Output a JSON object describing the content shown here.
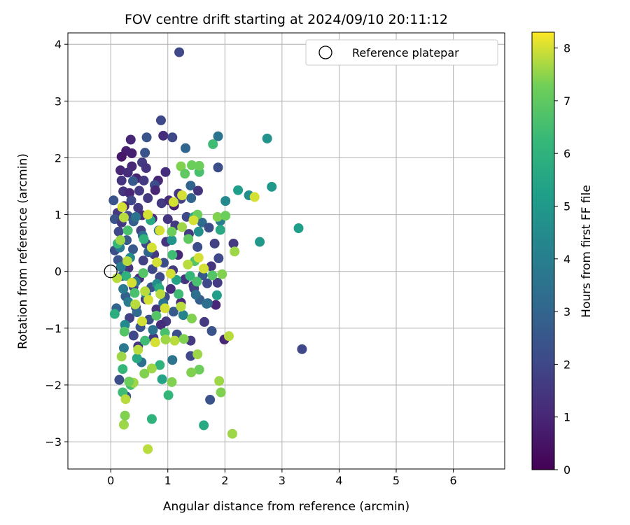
{
  "chart_data": {
    "type": "scatter",
    "title": "FOV centre drift starting at 2024/09/10 20:11:12",
    "xlabel": "Angular distance from reference (arcmin)",
    "ylabel": "Rotation from reference (arcmin)",
    "xlim": [
      -0.75,
      6.9
    ],
    "ylim": [
      -3.48,
      4.2
    ],
    "xticks": [
      0,
      1,
      2,
      3,
      4,
      5,
      6
    ],
    "yticks": [
      -3,
      -2,
      -1,
      0,
      1,
      2,
      3,
      4
    ],
    "grid": true,
    "legend": {
      "position": "top-right",
      "label": "Reference platepar"
    },
    "reference_point": {
      "x": 0,
      "y": 0
    },
    "colorbar": {
      "label": "Hours from first FF file",
      "range": [
        0,
        8.3
      ],
      "ticks": [
        0,
        1,
        2,
        3,
        4,
        5,
        6,
        7,
        8
      ],
      "colormap": "viridis"
    },
    "points": [
      {
        "x": 1.2,
        "y": 3.86,
        "c": 2.0
      },
      {
        "x": 0.88,
        "y": 2.66,
        "c": 2.0
      },
      {
        "x": 0.63,
        "y": 2.36,
        "c": 2.4
      },
      {
        "x": 0.92,
        "y": 2.39,
        "c": 1.2
      },
      {
        "x": 1.08,
        "y": 2.36,
        "c": 2.0
      },
      {
        "x": 0.35,
        "y": 2.32,
        "c": 1.0
      },
      {
        "x": 1.31,
        "y": 2.17,
        "c": 3.0
      },
      {
        "x": 0.6,
        "y": 2.09,
        "c": 2.4
      },
      {
        "x": 0.27,
        "y": 2.12,
        "c": 0.8
      },
      {
        "x": 0.37,
        "y": 2.08,
        "c": 0.8
      },
      {
        "x": 0.19,
        "y": 2.02,
        "c": 0.6
      },
      {
        "x": 0.55,
        "y": 1.92,
        "c": 1.6
      },
      {
        "x": 0.37,
        "y": 1.85,
        "c": 1.0
      },
      {
        "x": 0.17,
        "y": 1.78,
        "c": 1.0
      },
      {
        "x": 0.3,
        "y": 1.74,
        "c": 1.2
      },
      {
        "x": 0.62,
        "y": 1.82,
        "c": 1.4
      },
      {
        "x": 0.96,
        "y": 1.75,
        "c": 1.2
      },
      {
        "x": 0.45,
        "y": 1.64,
        "c": 0.9
      },
      {
        "x": 0.19,
        "y": 1.6,
        "c": 1.4
      },
      {
        "x": 0.39,
        "y": 1.59,
        "c": 2.6
      },
      {
        "x": 0.58,
        "y": 1.6,
        "c": 1.6
      },
      {
        "x": 0.83,
        "y": 1.6,
        "c": 1.0
      },
      {
        "x": 0.77,
        "y": 1.52,
        "c": 2.2
      },
      {
        "x": 0.22,
        "y": 1.41,
        "c": 1.4
      },
      {
        "x": 0.33,
        "y": 1.38,
        "c": 1.0
      },
      {
        "x": 0.5,
        "y": 1.42,
        "c": 1.6
      },
      {
        "x": 0.78,
        "y": 1.43,
        "c": 1.0
      },
      {
        "x": 0.65,
        "y": 1.29,
        "c": 1.6
      },
      {
        "x": 0.36,
        "y": 1.25,
        "c": 2.0
      },
      {
        "x": 0.05,
        "y": 1.25,
        "c": 2.4
      },
      {
        "x": 0.24,
        "y": 1.15,
        "c": 1.0
      },
      {
        "x": 0.48,
        "y": 1.12,
        "c": 1.6
      },
      {
        "x": 0.89,
        "y": 1.2,
        "c": 1.6
      },
      {
        "x": 1.02,
        "y": 1.25,
        "c": 1.2
      },
      {
        "x": 1.11,
        "y": 1.16,
        "c": 0.8
      },
      {
        "x": 0.12,
        "y": 1.03,
        "c": 1.6
      },
      {
        "x": 0.3,
        "y": 0.98,
        "c": 2.0
      },
      {
        "x": 0.55,
        "y": 0.99,
        "c": 1.2
      },
      {
        "x": 0.07,
        "y": 0.92,
        "c": 2.4
      },
      {
        "x": 0.19,
        "y": 0.86,
        "c": 1.6
      },
      {
        "x": 0.4,
        "y": 0.88,
        "c": 2.8
      },
      {
        "x": 0.73,
        "y": 0.93,
        "c": 1.0
      },
      {
        "x": 1.0,
        "y": 0.92,
        "c": 1.4
      },
      {
        "x": 0.14,
        "y": 0.7,
        "c": 2.0
      },
      {
        "x": 0.53,
        "y": 0.72,
        "c": 1.8
      },
      {
        "x": 0.84,
        "y": 0.72,
        "c": 3.6
      },
      {
        "x": 1.13,
        "y": 0.81,
        "c": 1.6
      },
      {
        "x": 0.28,
        "y": 0.55,
        "c": 2.6
      },
      {
        "x": 0.62,
        "y": 0.49,
        "c": 2.0
      },
      {
        "x": 0.97,
        "y": 0.52,
        "c": 1.4
      },
      {
        "x": 0.07,
        "y": 0.37,
        "c": 2.2
      },
      {
        "x": 0.39,
        "y": 0.39,
        "c": 2.6
      },
      {
        "x": 0.76,
        "y": 0.3,
        "c": 1.6
      },
      {
        "x": 1.18,
        "y": 0.29,
        "c": 1.0
      },
      {
        "x": 0.13,
        "y": 0.2,
        "c": 2.4
      },
      {
        "x": 0.57,
        "y": 0.19,
        "c": 1.8
      },
      {
        "x": 0.93,
        "y": 0.15,
        "c": 2.2
      },
      {
        "x": 0.31,
        "y": 0.06,
        "c": 1.4
      },
      {
        "x": 0.73,
        "y": 0.04,
        "c": 2.0
      },
      {
        "x": 1.09,
        "y": 0.02,
        "c": 1.6
      },
      {
        "x": 0.2,
        "y": -0.08,
        "c": 2.6
      },
      {
        "x": 0.5,
        "y": -0.12,
        "c": 1.2
      },
      {
        "x": 0.86,
        "y": -0.1,
        "c": 2.0
      },
      {
        "x": 1.3,
        "y": -0.14,
        "c": 1.4
      },
      {
        "x": 0.4,
        "y": -0.27,
        "c": 1.8
      },
      {
        "x": 0.71,
        "y": -0.28,
        "c": 2.4
      },
      {
        "x": 1.05,
        "y": -0.31,
        "c": 1.2
      },
      {
        "x": 1.45,
        "y": -0.25,
        "c": 1.6
      },
      {
        "x": 0.26,
        "y": -0.44,
        "c": 2.8
      },
      {
        "x": 0.61,
        "y": -0.49,
        "c": 1.6
      },
      {
        "x": 0.95,
        "y": -0.45,
        "c": 2.2
      },
      {
        "x": 1.23,
        "y": -0.55,
        "c": 1.0
      },
      {
        "x": 0.44,
        "y": -0.63,
        "c": 2.0
      },
      {
        "x": 0.8,
        "y": -0.67,
        "c": 1.4
      },
      {
        "x": 1.1,
        "y": -0.71,
        "c": 2.6
      },
      {
        "x": 0.1,
        "y": -0.65,
        "c": 3.0
      },
      {
        "x": 0.33,
        "y": -0.82,
        "c": 1.8
      },
      {
        "x": 0.67,
        "y": -0.85,
        "c": 2.2
      },
      {
        "x": 0.97,
        "y": -0.88,
        "c": 1.6
      },
      {
        "x": 0.52,
        "y": -0.98,
        "c": 2.4
      },
      {
        "x": 0.88,
        "y": -0.94,
        "c": 1.2
      },
      {
        "x": 0.4,
        "y": -1.13,
        "c": 2.0
      },
      {
        "x": 0.75,
        "y": -1.17,
        "c": 1.6
      },
      {
        "x": 1.16,
        "y": -1.11,
        "c": 2.2
      },
      {
        "x": 0.48,
        "y": -1.32,
        "c": 1.4
      },
      {
        "x": 1.4,
        "y": -1.49,
        "c": 2.0
      },
      {
        "x": 0.27,
        "y": -2.2,
        "c": 2.4
      },
      {
        "x": 0.15,
        "y": -1.91,
        "c": 2.2
      },
      {
        "x": 1.19,
        "y": 1.37,
        "c": 1.6
      },
      {
        "x": 1.23,
        "y": 1.28,
        "c": 1.8
      },
      {
        "x": 1.4,
        "y": 1.51,
        "c": 3.0
      },
      {
        "x": 1.53,
        "y": 1.42,
        "c": 1.4
      },
      {
        "x": 1.88,
        "y": 1.83,
        "c": 2.2
      },
      {
        "x": 1.88,
        "y": 2.38,
        "c": 3.6
      },
      {
        "x": 1.33,
        "y": 0.96,
        "c": 2.0
      },
      {
        "x": 1.6,
        "y": 0.86,
        "c": 3.2
      },
      {
        "x": 1.72,
        "y": 0.77,
        "c": 2.2
      },
      {
        "x": 1.37,
        "y": 0.66,
        "c": 1.6
      },
      {
        "x": 1.82,
        "y": 0.49,
        "c": 1.8
      },
      {
        "x": 2.15,
        "y": 0.49,
        "c": 1.6
      },
      {
        "x": 1.52,
        "y": 0.43,
        "c": 2.2
      },
      {
        "x": 1.89,
        "y": 0.23,
        "c": 2.0
      },
      {
        "x": 1.76,
        "y": 0.09,
        "c": 1.4
      },
      {
        "x": 1.61,
        "y": -0.07,
        "c": 2.6
      },
      {
        "x": 1.69,
        "y": -0.21,
        "c": 2.0
      },
      {
        "x": 1.87,
        "y": -0.2,
        "c": 1.6
      },
      {
        "x": 1.46,
        "y": -0.3,
        "c": 1.8
      },
      {
        "x": 1.56,
        "y": -0.5,
        "c": 2.8
      },
      {
        "x": 1.84,
        "y": -0.59,
        "c": 1.0
      },
      {
        "x": 1.7,
        "y": -0.56,
        "c": 3.0
      },
      {
        "x": 1.64,
        "y": -0.89,
        "c": 1.6
      },
      {
        "x": 1.77,
        "y": -1.05,
        "c": 2.4
      },
      {
        "x": 1.99,
        "y": -1.2,
        "c": 1.0
      },
      {
        "x": 1.4,
        "y": -1.22,
        "c": 1.6
      },
      {
        "x": 1.74,
        "y": -2.26,
        "c": 2.4
      },
      {
        "x": 3.35,
        "y": -1.37,
        "c": 2.0
      },
      {
        "x": 0.18,
        "y": 0.08,
        "c": 4.0
      },
      {
        "x": 0.34,
        "y": 0.24,
        "c": 4.4
      },
      {
        "x": 0.44,
        "y": -0.18,
        "c": 3.6
      },
      {
        "x": 0.62,
        "y": -0.4,
        "c": 4.2
      },
      {
        "x": 0.22,
        "y": -0.31,
        "c": 3.8
      },
      {
        "x": 0.81,
        "y": -0.22,
        "c": 4.6
      },
      {
        "x": 0.56,
        "y": 0.63,
        "c": 3.4
      },
      {
        "x": 0.31,
        "y": -0.54,
        "c": 4.0
      },
      {
        "x": 0.46,
        "y": -0.72,
        "c": 3.2
      },
      {
        "x": 0.25,
        "y": -0.94,
        "c": 4.4
      },
      {
        "x": 0.66,
        "y": 0.34,
        "c": 3.0
      },
      {
        "x": 0.92,
        "y": -0.56,
        "c": 3.6
      },
      {
        "x": 1.27,
        "y": -0.77,
        "c": 4.2
      },
      {
        "x": 1.49,
        "y": -0.41,
        "c": 3.4
      },
      {
        "x": 1.68,
        "y": -0.57,
        "c": 3.4
      },
      {
        "x": 1.92,
        "y": 0.89,
        "c": 4.0
      },
      {
        "x": 2.01,
        "y": 1.24,
        "c": 4.4
      },
      {
        "x": 1.41,
        "y": 1.29,
        "c": 3.0
      },
      {
        "x": 1.07,
        "y": 0.55,
        "c": 4.8
      },
      {
        "x": 0.16,
        "y": 0.42,
        "c": 3.8
      },
      {
        "x": 0.74,
        "y": -1.03,
        "c": 3.6
      },
      {
        "x": 1.08,
        "y": -1.56,
        "c": 3.6
      },
      {
        "x": 0.54,
        "y": -1.6,
        "c": 3.4
      },
      {
        "x": 0.23,
        "y": -1.35,
        "c": 3.8
      },
      {
        "x": 0.44,
        "y": 0.96,
        "c": 3.6
      },
      {
        "x": 1.54,
        "y": 0.7,
        "c": 4.6
      },
      {
        "x": 2.42,
        "y": 1.34,
        "c": 4.6
      },
      {
        "x": 2.74,
        "y": 2.34,
        "c": 4.8
      },
      {
        "x": 2.82,
        "y": 1.49,
        "c": 5.0
      },
      {
        "x": 2.23,
        "y": 1.43,
        "c": 5.2
      },
      {
        "x": 2.61,
        "y": 0.52,
        "c": 5.0
      },
      {
        "x": 3.29,
        "y": 0.76,
        "c": 5.2
      },
      {
        "x": 1.92,
        "y": 0.73,
        "c": 5.6
      },
      {
        "x": 1.86,
        "y": -0.42,
        "c": 5.2
      },
      {
        "x": 1.46,
        "y": 0.96,
        "c": 5.8
      },
      {
        "x": 1.63,
        "y": -2.71,
        "c": 5.6
      },
      {
        "x": 1.15,
        "y": -0.15,
        "c": 5.4
      },
      {
        "x": 0.85,
        "y": -0.3,
        "c": 5.8
      },
      {
        "x": 0.7,
        "y": 0.9,
        "c": 5.6
      },
      {
        "x": 0.27,
        "y": -0.08,
        "c": 6.0
      },
      {
        "x": 0.07,
        "y": -0.75,
        "c": 5.8
      },
      {
        "x": 0.21,
        "y": -1.72,
        "c": 6.2
      },
      {
        "x": 0.46,
        "y": -1.53,
        "c": 5.6
      },
      {
        "x": 0.86,
        "y": -1.65,
        "c": 6.0
      },
      {
        "x": 0.9,
        "y": -1.9,
        "c": 5.4
      },
      {
        "x": 1.01,
        "y": -2.18,
        "c": 6.2
      },
      {
        "x": 0.72,
        "y": -2.6,
        "c": 6.0
      },
      {
        "x": 0.21,
        "y": -2.13,
        "c": 6.4
      },
      {
        "x": 0.35,
        "y": -2.0,
        "c": 6.6
      },
      {
        "x": 1.79,
        "y": 2.24,
        "c": 6.4
      },
      {
        "x": 1.55,
        "y": 1.75,
        "c": 6.6
      },
      {
        "x": 1.39,
        "y": -0.08,
        "c": 6.2
      },
      {
        "x": 1.08,
        "y": 0.29,
        "c": 6.4
      },
      {
        "x": 0.58,
        "y": 0.57,
        "c": 6.0
      },
      {
        "x": 0.3,
        "y": 0.72,
        "c": 6.6
      },
      {
        "x": 0.12,
        "y": 0.49,
        "c": 6.2
      },
      {
        "x": 0.57,
        "y": -0.03,
        "c": 6.8
      },
      {
        "x": 0.8,
        "y": -0.78,
        "c": 6.8
      },
      {
        "x": 0.6,
        "y": -1.22,
        "c": 6.4
      },
      {
        "x": 0.24,
        "y": -1.06,
        "c": 6.8
      },
      {
        "x": 0.42,
        "y": -0.38,
        "c": 6.6
      },
      {
        "x": 1.19,
        "y": -0.4,
        "c": 6.4
      },
      {
        "x": 0.95,
        "y": -1.08,
        "c": 6.6
      },
      {
        "x": 1.47,
        "y": 0.18,
        "c": 6.8
      },
      {
        "x": 1.51,
        "y": -0.18,
        "c": 6.6
      },
      {
        "x": 1.78,
        "y": -0.07,
        "c": 6.8
      },
      {
        "x": 1.42,
        "y": 1.87,
        "c": 7.2
      },
      {
        "x": 1.23,
        "y": 1.85,
        "c": 7.4
      },
      {
        "x": 1.55,
        "y": 1.86,
        "c": 7.2
      },
      {
        "x": 1.3,
        "y": 1.72,
        "c": 7.0
      },
      {
        "x": 1.87,
        "y": 0.96,
        "c": 7.4
      },
      {
        "x": 2.01,
        "y": 0.98,
        "c": 7.2
      },
      {
        "x": 1.36,
        "y": 0.57,
        "c": 7.0
      },
      {
        "x": 1.52,
        "y": 1.0,
        "c": 7.2
      },
      {
        "x": 1.25,
        "y": 0.78,
        "c": 7.6
      },
      {
        "x": 1.07,
        "y": 0.7,
        "c": 7.2
      },
      {
        "x": 2.17,
        "y": 0.35,
        "c": 7.6
      },
      {
        "x": 1.95,
        "y": -0.05,
        "c": 7.4
      },
      {
        "x": 1.9,
        "y": -1.93,
        "c": 7.6
      },
      {
        "x": 1.93,
        "y": -2.13,
        "c": 7.4
      },
      {
        "x": 2.13,
        "y": -2.86,
        "c": 7.6
      },
      {
        "x": 0.65,
        "y": -3.13,
        "c": 7.8
      },
      {
        "x": 0.23,
        "y": -2.7,
        "c": 7.6
      },
      {
        "x": 0.25,
        "y": -2.54,
        "c": 7.4
      },
      {
        "x": 0.26,
        "y": -2.25,
        "c": 7.8
      },
      {
        "x": 0.4,
        "y": -1.96,
        "c": 7.6
      },
      {
        "x": 0.32,
        "y": -1.94,
        "c": 7.2
      },
      {
        "x": 0.59,
        "y": -1.8,
        "c": 7.4
      },
      {
        "x": 0.72,
        "y": -1.71,
        "c": 7.6
      },
      {
        "x": 1.07,
        "y": -1.95,
        "c": 7.4
      },
      {
        "x": 1.12,
        "y": -1.22,
        "c": 7.8
      },
      {
        "x": 0.96,
        "y": -1.2,
        "c": 7.6
      },
      {
        "x": 1.28,
        "y": -1.19,
        "c": 7.4
      },
      {
        "x": 1.55,
        "y": -1.73,
        "c": 7.2
      },
      {
        "x": 1.41,
        "y": -1.78,
        "c": 7.4
      },
      {
        "x": 1.52,
        "y": -1.46,
        "c": 7.6
      },
      {
        "x": 1.23,
        "y": -0.62,
        "c": 7.8
      },
      {
        "x": 1.42,
        "y": -0.83,
        "c": 7.4
      },
      {
        "x": 2.07,
        "y": -1.14,
        "c": 7.8
      },
      {
        "x": 0.19,
        "y": -1.5,
        "c": 7.6
      },
      {
        "x": 0.43,
        "y": -0.58,
        "c": 7.8
      },
      {
        "x": 0.66,
        "y": -0.5,
        "c": 8.0
      },
      {
        "x": 0.87,
        "y": -0.4,
        "c": 7.8
      },
      {
        "x": 1.05,
        "y": -0.04,
        "c": 8.0
      },
      {
        "x": 1.35,
        "y": 0.12,
        "c": 7.8
      },
      {
        "x": 0.37,
        "y": -0.2,
        "c": 8.0
      },
      {
        "x": 0.6,
        "y": -0.35,
        "c": 7.8
      },
      {
        "x": 0.81,
        "y": 0.16,
        "c": 8.0
      },
      {
        "x": 0.17,
        "y": 0.55,
        "c": 7.6
      },
      {
        "x": 0.23,
        "y": 0.95,
        "c": 7.8
      },
      {
        "x": 0.2,
        "y": 1.13,
        "c": 8.0
      },
      {
        "x": 1.54,
        "y": 0.24,
        "c": 8.0
      },
      {
        "x": 1.45,
        "y": 0.9,
        "c": 8.0
      },
      {
        "x": 1.25,
        "y": 1.34,
        "c": 8.0
      },
      {
        "x": 1.1,
        "y": 1.22,
        "c": 8.0
      },
      {
        "x": 0.86,
        "y": 0.72,
        "c": 8.0
      },
      {
        "x": 0.65,
        "y": 1.0,
        "c": 8.0
      },
      {
        "x": 0.11,
        "y": -0.12,
        "c": 7.8
      },
      {
        "x": 0.55,
        "y": -0.88,
        "c": 8.0
      },
      {
        "x": 0.78,
        "y": -1.25,
        "c": 8.0
      },
      {
        "x": 0.48,
        "y": -1.38,
        "c": 7.8
      },
      {
        "x": 2.52,
        "y": 1.31,
        "c": 8.0
      },
      {
        "x": 1.63,
        "y": 0.05,
        "c": 8.0
      },
      {
        "x": 0.95,
        "y": -0.65,
        "c": 8.0
      },
      {
        "x": 0.29,
        "y": 0.18,
        "c": 7.8
      },
      {
        "x": 0.72,
        "y": 0.42,
        "c": 8.0
      }
    ]
  }
}
